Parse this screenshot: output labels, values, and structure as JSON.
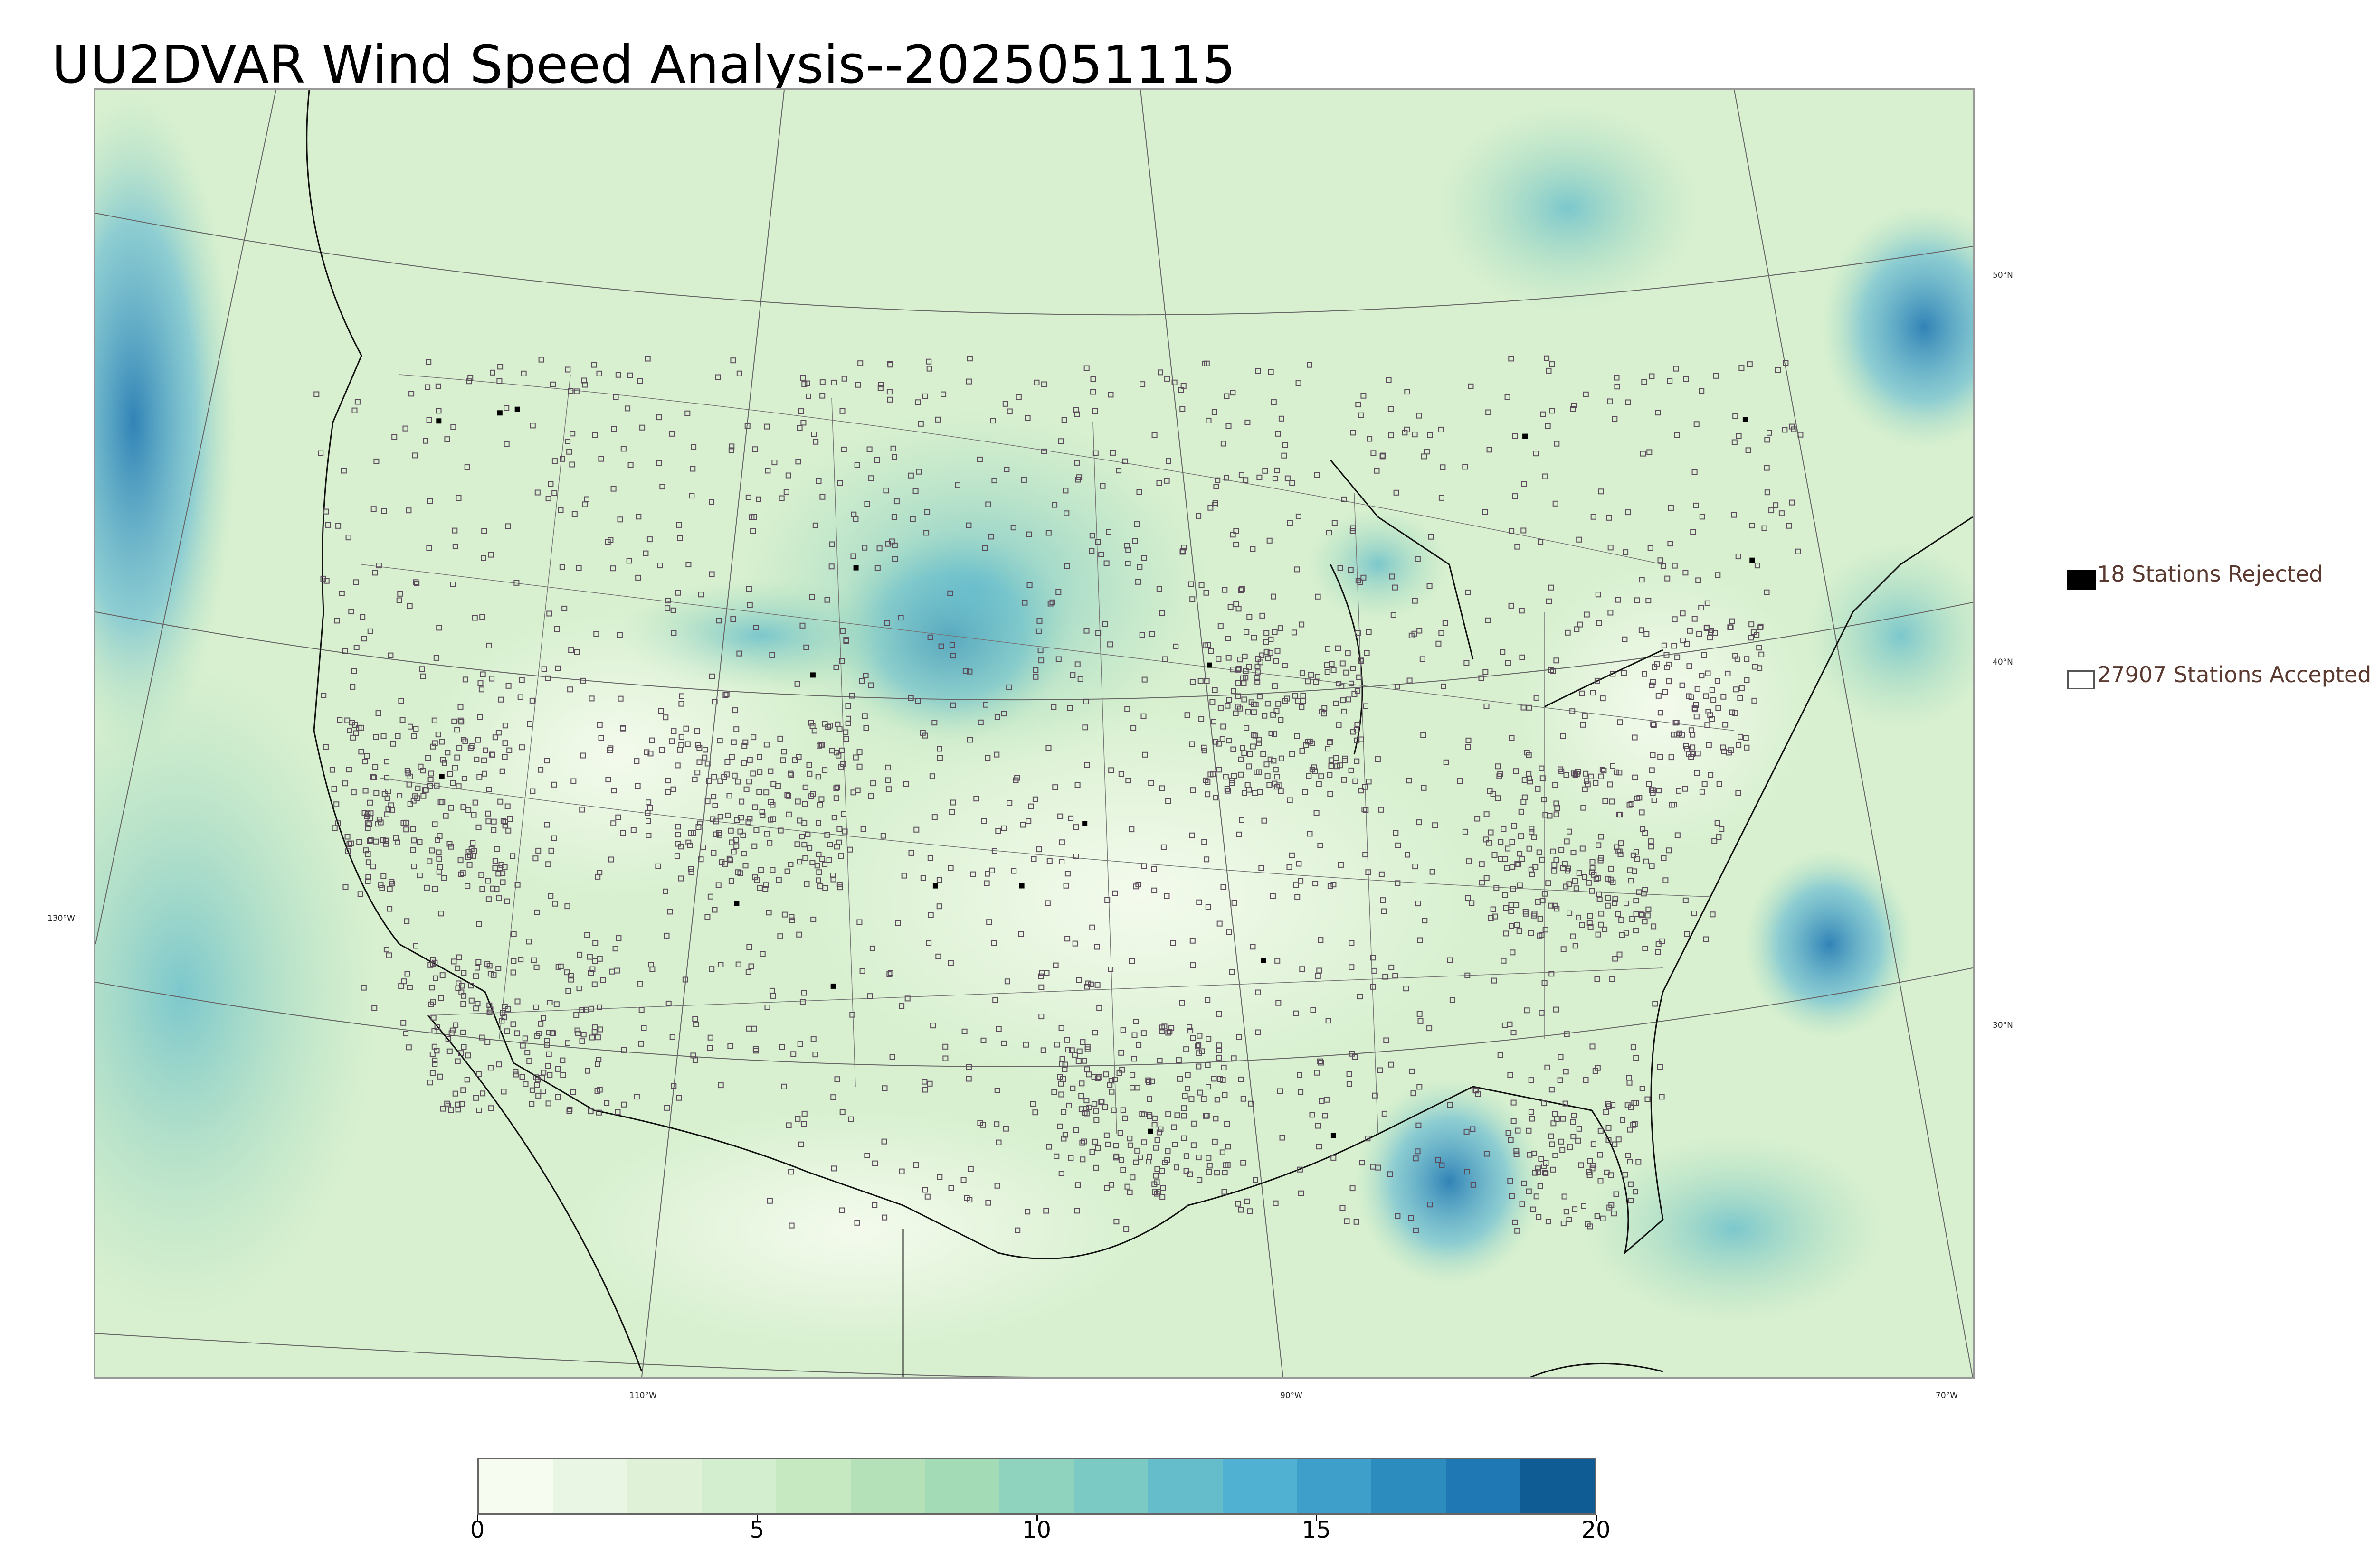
{
  "title": "UU2DVAR Wind Speed Analysis--2025051115",
  "map": {
    "longitude_labels": [
      "130°W",
      "110°W",
      "90°W",
      "70°W"
    ],
    "latitude_labels": [
      "50°N",
      "40°N",
      "30°N"
    ]
  },
  "legend": {
    "rejected_label": "18 Stations Rejected",
    "accepted_label": "27907 Stations Accepted",
    "rejected_count": 18,
    "accepted_count": 27907
  },
  "colorbar": {
    "min": 0,
    "max": 20,
    "tick_labels": [
      "0",
      "5",
      "10",
      "15",
      "20"
    ],
    "colors": [
      "#f7fcf0",
      "#e8f6e3",
      "#dff2d8",
      "#d3eece",
      "#c7e9c2",
      "#b5e1b9",
      "#a3dbb7",
      "#8fd3be",
      "#7bcbc4",
      "#65bdcc",
      "#51b1d3",
      "#3e9fcb",
      "#2d8cbe",
      "#1f77b4",
      "#0f5c95"
    ]
  },
  "colors": {
    "title": "#000000",
    "legend_text": "#5a3a30",
    "station_marker": "#5a4a5a",
    "background": "#ffffff"
  }
}
